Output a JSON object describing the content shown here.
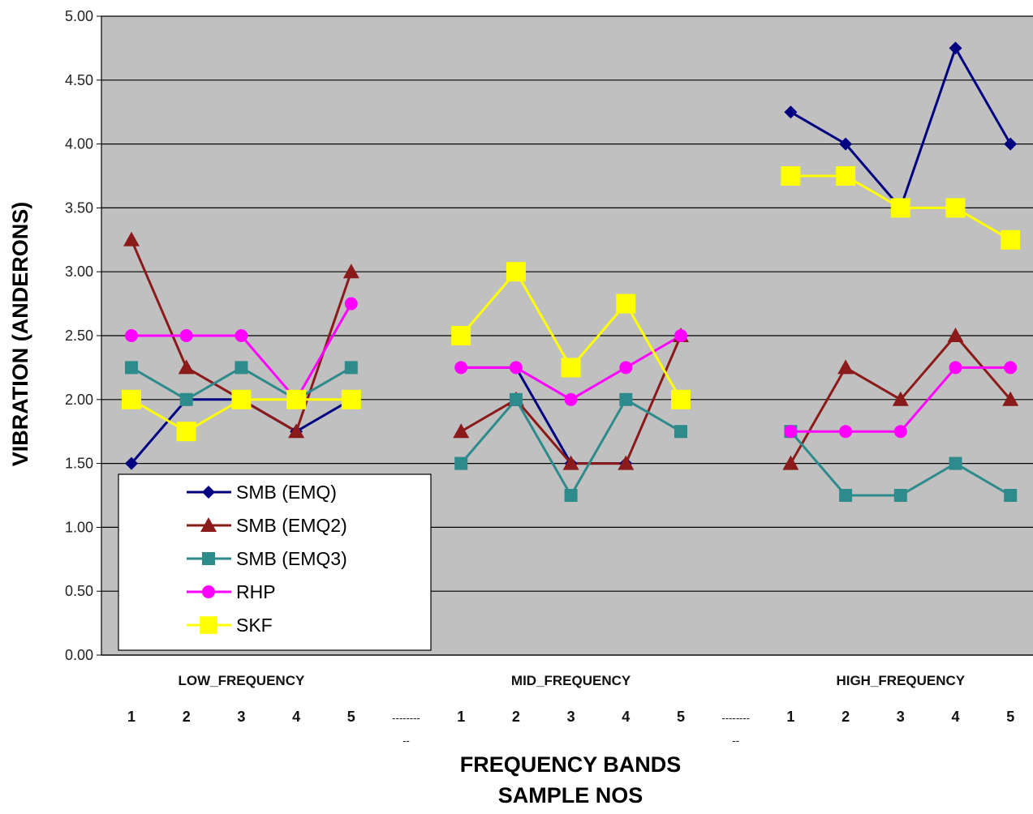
{
  "chart_data": {
    "type": "line",
    "ylabel": "VIBRATION (ANDERONS)",
    "xlabel_line1": "FREQUENCY BANDS",
    "xlabel_line2": "SAMPLE NOS",
    "ylim": [
      0,
      5
    ],
    "y_ticks": [
      "0.00",
      "0.50",
      "1.00",
      "1.50",
      "2.00",
      "2.50",
      "3.00",
      "3.50",
      "4.00",
      "4.50",
      "5.00"
    ],
    "grid": true,
    "legend_position": "bottom-left",
    "groups": [
      "LOW_FREQUENCY",
      "MID_FREQUENCY",
      "HIGH_FREQUENCY"
    ],
    "categories": [
      "1",
      "2",
      "3",
      "4",
      "5",
      "--------\n--",
      "1",
      "2",
      "3",
      "4",
      "5",
      "--------\n--",
      "1",
      "2",
      "3",
      "4",
      "5"
    ],
    "series": [
      {
        "name": "SMB (EMQ)",
        "color": "#000080",
        "marker": "diamond",
        "values": [
          1.5,
          2.0,
          2.0,
          1.75,
          2.0,
          null,
          2.25,
          2.25,
          1.5,
          1.5,
          null,
          null,
          4.25,
          4.0,
          3.5,
          4.75,
          4.0
        ]
      },
      {
        "name": "SMB (EMQ2)",
        "color": "#8B1A1A",
        "marker": "triangle",
        "values": [
          3.25,
          2.25,
          2.0,
          1.75,
          3.0,
          null,
          1.75,
          2.0,
          1.5,
          1.5,
          2.5,
          null,
          1.5,
          2.25,
          2.0,
          2.5,
          2.0
        ]
      },
      {
        "name": "SMB (EMQ3)",
        "color": "#2E8B8B",
        "marker": "square",
        "values": [
          2.25,
          2.0,
          2.25,
          2.0,
          2.25,
          null,
          1.5,
          2.0,
          1.25,
          2.0,
          1.75,
          null,
          1.75,
          1.25,
          1.25,
          1.5,
          1.25
        ]
      },
      {
        "name": "RHP",
        "color": "#FF00FF",
        "marker": "circle",
        "values": [
          2.5,
          2.5,
          2.5,
          2.0,
          2.75,
          null,
          2.25,
          2.25,
          2.0,
          2.25,
          2.5,
          null,
          1.75,
          1.75,
          1.75,
          2.25,
          2.25
        ]
      },
      {
        "name": "SKF",
        "color": "#FFFF00",
        "marker": "bigsquare",
        "values": [
          2.0,
          1.75,
          2.0,
          2.0,
          2.0,
          null,
          2.5,
          3.0,
          2.25,
          2.75,
          2.0,
          null,
          3.75,
          3.75,
          3.5,
          3.5,
          3.25
        ]
      }
    ]
  },
  "colors": {
    "plot_background": "#C0C0C0",
    "gridline": "#000000"
  }
}
